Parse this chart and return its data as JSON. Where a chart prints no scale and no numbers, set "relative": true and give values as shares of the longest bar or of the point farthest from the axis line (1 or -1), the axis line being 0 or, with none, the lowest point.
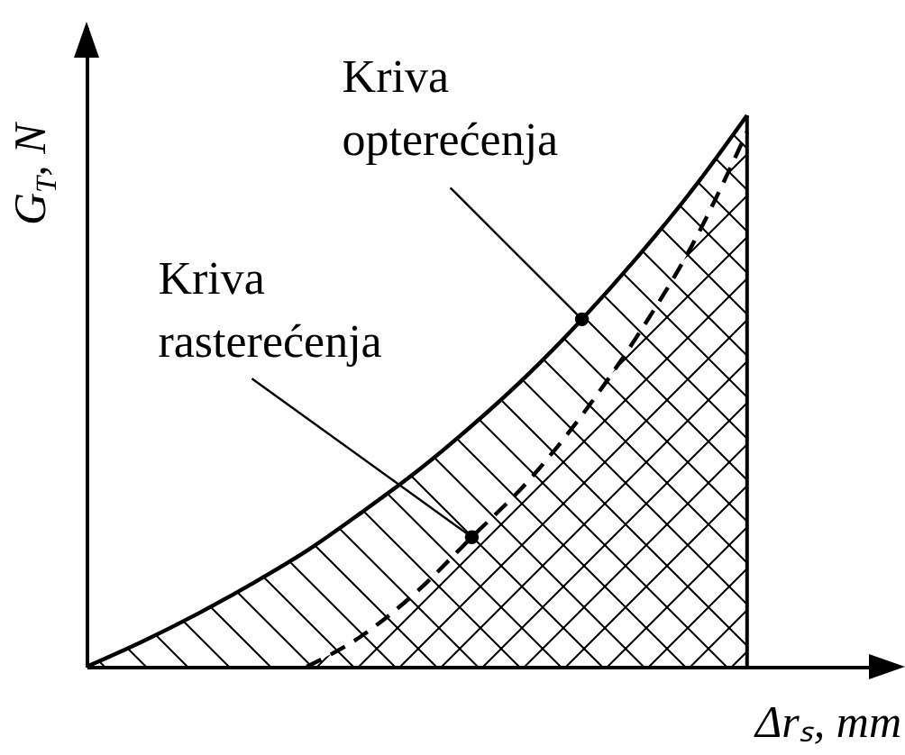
{
  "chart_data": {
    "type": "area",
    "relative": true,
    "xlabel": "Δrₛ, mm",
    "ylabel": "G$_{T}$, N",
    "categories": [
      null,
      null,
      null,
      null,
      null,
      null,
      null,
      null,
      null,
      null,
      null,
      null,
      null
    ],
    "series": [
      {
        "name": "Kriva opterećenja",
        "color": "#000000",
        "line_style": "solid",
        "values": [
          0,
          0.045,
          0.095,
          0.15,
          0.21,
          0.28,
          0.354,
          0.437,
          0.528,
          0.63,
          0.742,
          0.864,
          1.0
        ]
      },
      {
        "name": "Kriva rasterećenja",
        "color": "#000000",
        "line_style": "dashed",
        "values": [
          null,
          null,
          null,
          null,
          0,
          0.056,
          0.136,
          0.235,
          0.334,
          0.456,
          0.599,
          0.764,
          0.97
        ]
      }
    ]
  }
}
